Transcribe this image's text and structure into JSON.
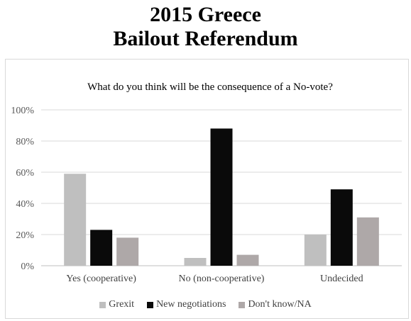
{
  "title": {
    "line1": "2015 Greece",
    "line2": "Bailout Referendum"
  },
  "chart_data": {
    "type": "bar",
    "title": "What do you think will be the consequence  of a No-vote?",
    "xlabel": "",
    "ylabel": "",
    "ylim": [
      0,
      100
    ],
    "y_ticks": [
      "0%",
      "20%",
      "40%",
      "60%",
      "80%",
      "100%"
    ],
    "y_tick_values": [
      0,
      20,
      40,
      60,
      80,
      100
    ],
    "categories": [
      "Yes (cooperative)",
      "No (non-cooperative)",
      "Undecided"
    ],
    "series": [
      {
        "name": "Grexit",
        "values": [
          59,
          5,
          20
        ],
        "color": "#bfbfbf"
      },
      {
        "name": "New negotiations",
        "values": [
          23,
          88,
          49
        ],
        "color": "#0a0a0a"
      },
      {
        "name": "Don't know/NA",
        "values": [
          18,
          7,
          31
        ],
        "color": "#aea8a8"
      }
    ],
    "grid": true,
    "legend_position": "bottom"
  }
}
